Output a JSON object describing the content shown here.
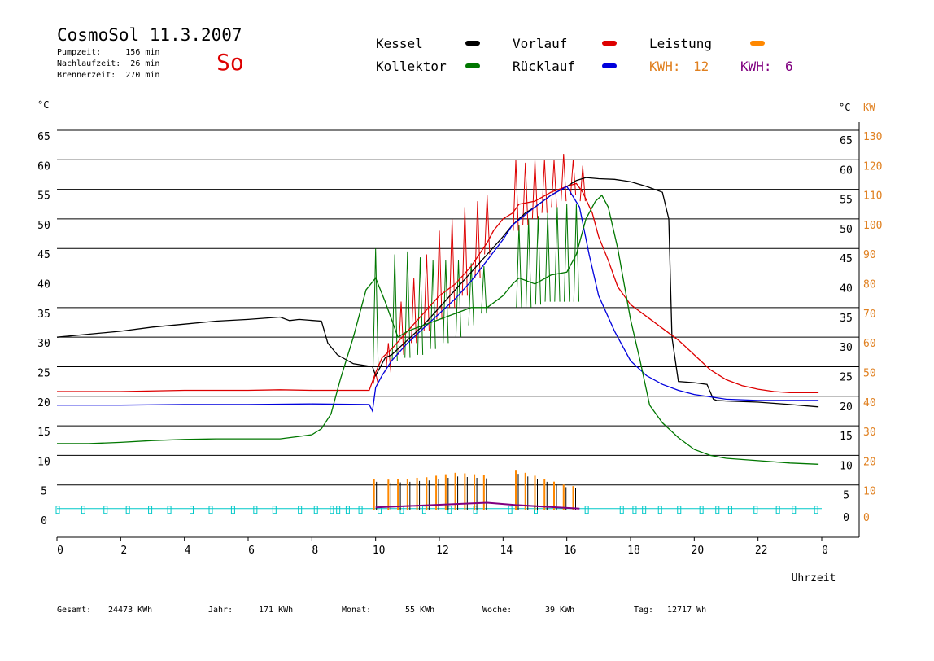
{
  "header": {
    "title": "CosmoSol 11.3.2007",
    "info_lines": [
      "Pumpzeit:     156 min",
      "Nachlaufzeit:  26 min",
      "Brennerzeit:  270 min"
    ],
    "day": "So"
  },
  "legend": {
    "items": [
      {
        "label": "Kessel",
        "color": "#000000"
      },
      {
        "label": "Vorlauf",
        "color": "#dd0000"
      },
      {
        "label": "Leistung",
        "color": "#ff8800"
      },
      {
        "label": "Kollektor",
        "color": "#007700"
      },
      {
        "label": "Rücklauf",
        "color": "#0000dd"
      }
    ],
    "kwh_orange": {
      "label": "KWH:",
      "value": "12",
      "color": "#e08020"
    },
    "kwh_purple": {
      "label": "KWH:",
      "value": "6",
      "color": "#800080"
    }
  },
  "footer": {
    "gesamt_label": "Gesamt:",
    "gesamt_value": "24473 KWh",
    "jahr_label": "Jahr:",
    "jahr_value": "171 KWh",
    "monat_label": "Monat:",
    "monat_value": "55 KWh",
    "woche_label": "Woche:",
    "woche_value": "39 KWh",
    "tag_label": "Tag:",
    "tag_value": "12717 Wh"
  },
  "chart_data": {
    "type": "line",
    "xlabel": "Uhrzeit",
    "y_left_unit": "°C",
    "y_right_unit": "°C",
    "y2_unit": "KW",
    "xlim": [
      0,
      24
    ],
    "ylim": [
      0,
      65
    ],
    "y2lim": [
      0,
      130
    ],
    "x_ticks": [
      "0",
      "2",
      "4",
      "6",
      "8",
      "10",
      "12",
      "14",
      "16",
      "18",
      "20",
      "22",
      "0"
    ],
    "y_ticks": [
      0,
      5,
      10,
      15,
      20,
      25,
      30,
      35,
      40,
      45,
      50,
      55,
      60,
      65
    ],
    "y2_ticks": [
      0,
      10,
      20,
      30,
      40,
      50,
      60,
      70,
      80,
      90,
      100,
      110,
      120,
      130
    ],
    "grid": "horizontal",
    "series": [
      {
        "name": "Kessel",
        "color": "#000000",
        "x": [
          0,
          1,
          2,
          3,
          4,
          5,
          6,
          7,
          7.3,
          7.6,
          8.3,
          8.5,
          8.8,
          9.3,
          9.9,
          10.0,
          10.3,
          10.5,
          11,
          11.5,
          12,
          12.5,
          13,
          13.5,
          14,
          14.3,
          14.7,
          15,
          15.5,
          16,
          16.3,
          16.6,
          17,
          17.5,
          18,
          18.5,
          19,
          19.2,
          19.3,
          19.5,
          20,
          20.4,
          20.6,
          20.7,
          21,
          22,
          23,
          23.9
        ],
        "y": [
          30,
          30.5,
          31,
          31.7,
          32.2,
          32.7,
          33,
          33.4,
          32.8,
          33,
          32.7,
          29,
          27,
          25.5,
          25,
          23.5,
          26.5,
          27,
          29.5,
          32,
          35,
          38,
          41,
          44,
          47,
          49,
          51,
          52,
          54,
          55.5,
          56.5,
          57,
          56.8,
          56.7,
          56.3,
          55.5,
          54.5,
          50,
          30,
          22.5,
          22.3,
          22,
          19.5,
          19.3,
          19.2,
          19,
          18.6,
          18.2
        ]
      },
      {
        "name": "Vorlauf",
        "color": "#dd0000",
        "x": [
          0,
          2,
          4,
          6,
          7,
          8,
          9.8,
          10,
          10.2,
          10.5,
          11,
          11.5,
          12,
          12.5,
          13,
          13.5,
          13.7,
          14,
          14.3,
          14.5,
          15,
          15.5,
          16,
          16.3,
          16.5,
          16.8,
          17,
          17.3,
          17.6,
          18,
          18.5,
          19,
          19.5,
          20,
          20.5,
          21,
          21.5,
          22,
          22.5,
          23,
          23.9
        ],
        "y": [
          20.8,
          20.8,
          21,
          21,
          21.1,
          21,
          21,
          24,
          26.5,
          28,
          31,
          34,
          37,
          39,
          42,
          46,
          48,
          50,
          51,
          52.5,
          53,
          54.5,
          55.5,
          56,
          54.5,
          51,
          47,
          43,
          38.5,
          35.5,
          33.5,
          31.5,
          29.5,
          27,
          24.5,
          22.8,
          21.8,
          21.2,
          20.8,
          20.6,
          20.6
        ]
      },
      {
        "name": "Rücklauf",
        "color": "#0000dd",
        "x": [
          0,
          2,
          4,
          6,
          8,
          9.8,
          9.9,
          10.0,
          10.2,
          10.5,
          11,
          11.5,
          12,
          12.5,
          13,
          13.5,
          14,
          14.3,
          15,
          15.5,
          16,
          16.4,
          16.7,
          17,
          17.5,
          18,
          18.5,
          19,
          19.5,
          20,
          21,
          22,
          23,
          23.9
        ],
        "y": [
          18.5,
          18.5,
          18.6,
          18.6,
          18.7,
          18.6,
          17.5,
          21.5,
          23.5,
          26,
          29,
          31.5,
          34,
          36.5,
          39.5,
          43,
          46.5,
          49,
          52,
          54,
          55.5,
          52,
          44,
          37,
          31,
          26,
          23.5,
          22,
          21,
          20.3,
          19.5,
          19.3,
          19.3,
          19.3
        ]
      },
      {
        "name": "Kollektor",
        "color": "#007700",
        "x": [
          0,
          1,
          2,
          3,
          4,
          5,
          6,
          7,
          7.6,
          8,
          8.3,
          8.6,
          8.9,
          9.3,
          9.7,
          10.0,
          10.3,
          10.7,
          11,
          11.5,
          12,
          12.5,
          13,
          13.5,
          14,
          14.3,
          14.5,
          15,
          15.5,
          16,
          16.3,
          16.6,
          16.9,
          17.1,
          17.3,
          17.6,
          18,
          18.3,
          18.6,
          19,
          19.5,
          20,
          20.5,
          21,
          22,
          23,
          23.9
        ],
        "y": [
          12,
          12,
          12.2,
          12.5,
          12.7,
          12.8,
          12.8,
          12.8,
          13.2,
          13.5,
          14.5,
          17,
          23,
          30,
          38,
          40,
          36,
          30,
          31,
          32,
          33,
          34,
          35,
          35,
          37,
          39,
          40,
          39,
          40.5,
          41,
          44,
          50,
          53,
          54,
          52,
          45,
          33,
          26,
          18.5,
          15.5,
          13,
          11,
          10,
          9.5,
          9.1,
          8.7,
          8.5
        ]
      }
    ],
    "series_pulses": [
      {
        "name": "Kollektor pulses",
        "color": "#007700",
        "x": [
          10.0,
          10.6,
          11.0,
          11.4,
          11.8,
          12.2,
          12.6,
          13.0,
          13.4,
          14.5,
          14.8,
          15.1,
          15.4,
          15.7,
          16.0,
          16.3
        ],
        "y": [
          45,
          44,
          44.5,
          43.5,
          43,
          43,
          43,
          42.5,
          42,
          49,
          50,
          50.5,
          51,
          52,
          52.5,
          52.5
        ],
        "base": [
          25,
          26,
          26.5,
          27,
          28,
          29,
          30,
          32,
          34,
          35,
          35,
          35.5,
          36,
          36,
          36,
          36
        ]
      },
      {
        "name": "Vorlauf pulses",
        "color": "#dd0000",
        "x": [
          10.0,
          10.4,
          10.8,
          11.2,
          11.6,
          12.0,
          12.4,
          12.8,
          13.2,
          13.5,
          14.4,
          14.7,
          15.0,
          15.3,
          15.6,
          15.9,
          16.2,
          16.5
        ],
        "y": [
          24,
          29,
          36,
          40,
          44,
          48,
          50,
          52,
          53,
          54,
          60,
          59.5,
          60,
          60,
          60,
          61,
          60,
          59
        ],
        "base": [
          22,
          24,
          27,
          29,
          31,
          33,
          35,
          37,
          40,
          44,
          48,
          49,
          50,
          51,
          52,
          53,
          54,
          53
        ]
      }
    ],
    "leistung": {
      "name": "Leistung",
      "color": "#ff8800",
      "x": [
        9.95,
        10.4,
        10.7,
        11.0,
        11.3,
        11.6,
        11.9,
        12.2,
        12.5,
        12.8,
        13.1,
        13.4,
        14.4,
        14.7,
        15.0,
        15.3,
        15.6,
        15.9,
        16.2
      ],
      "y": [
        10.5,
        10.2,
        10.3,
        10.5,
        10.8,
        11,
        11.5,
        12,
        12.5,
        12.3,
        12,
        11.8,
        13.5,
        12.5,
        11.5,
        10.5,
        9.5,
        8.5,
        8
      ]
    },
    "pump_marker_color": "#00c8c8",
    "pump_marker_value": 1
  }
}
